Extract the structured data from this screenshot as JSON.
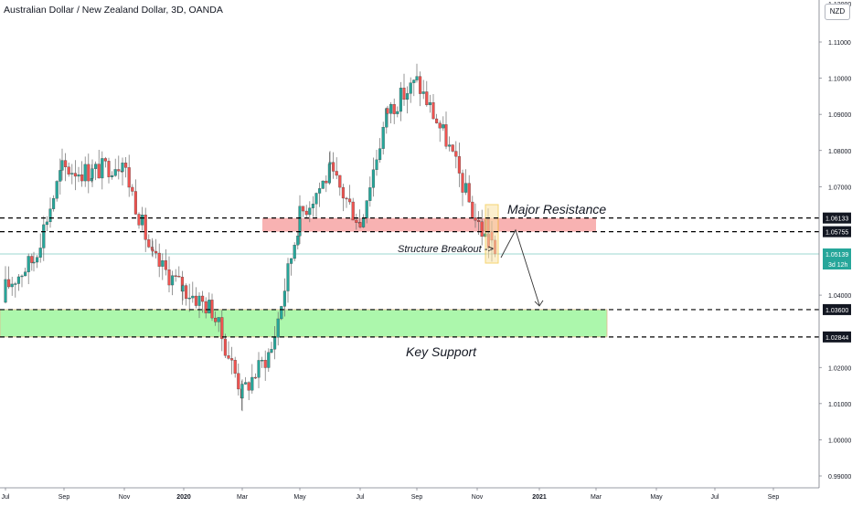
{
  "header": {
    "title": "Australian Dollar / New Zealand Dollar, 3D, OANDA",
    "currency_button": "NZD"
  },
  "price_axis": {
    "ticks": [
      "1.11000",
      "1.10000",
      "1.09000",
      "1.08000",
      "1.07000",
      "1.04000",
      "1.02000",
      "1.01000",
      "1.00000",
      "0.99000"
    ],
    "tick_values": [
      1.11,
      1.1,
      1.09,
      1.08,
      1.07,
      1.04,
      1.02,
      1.01,
      1.0,
      0.99
    ],
    "top_clipped_label": "1.12000",
    "level_labels": [
      {
        "text": "1.06133",
        "value": 1.06133
      },
      {
        "text": "1.05755",
        "value": 1.05755
      },
      {
        "text": "1.03600",
        "value": 1.036
      },
      {
        "text": "1.02844",
        "value": 1.02844
      }
    ],
    "last_price": {
      "text": "1.05139",
      "value": 1.05139,
      "countdown": "3d 12h"
    }
  },
  "time_axis": {
    "labels": [
      "Jul",
      "Sep",
      "Nov",
      "2020",
      "Mar",
      "May",
      "Jul",
      "Sep",
      "Nov",
      "2021",
      "Mar",
      "May",
      "Jul",
      "Sep"
    ],
    "bold": [
      "2020",
      "2021"
    ]
  },
  "annotations": {
    "resistance_label": "Major Resistance",
    "support_label": "Key Support",
    "breakout_label": "Structure Breakout ->"
  },
  "colors": {
    "up": "#26a69a",
    "down": "#ef5350",
    "resistance_zone": "#f7a4a4",
    "support_zone": "#a4f7a4",
    "highlight_box": "#fbe3a6",
    "last_price_badge": "#26a69a",
    "level_label_bg": "#131722",
    "text": "#131722",
    "axis_text": "#787b86"
  },
  "chart_data": {
    "type": "candlestick",
    "symbol": "AUDNZD",
    "timeframe": "3D",
    "source": "OANDA",
    "ylim": [
      0.99,
      1.12
    ],
    "x_range": [
      "2019-06",
      "2021-10"
    ],
    "horizontal_levels": [
      1.06133,
      1.05755,
      1.036,
      1.02844
    ],
    "resistance_zone": [
      1.05755,
      1.06133
    ],
    "support_zone": [
      1.02844,
      1.036
    ],
    "last_price": 1.05139,
    "projection": [
      1.05139,
      1.0575,
      1.036
    ],
    "close_path": [
      {
        "month": "Jul 2019",
        "close": 1.042
      },
      {
        "month": "Aug 2019",
        "close": 1.05
      },
      {
        "month": "Sep 2019",
        "close": 1.075
      },
      {
        "month": "Oct 2019",
        "close": 1.074
      },
      {
        "month": "Nov 2019",
        "close": 1.077
      },
      {
        "month": "Dec 2019",
        "close": 1.05
      },
      {
        "month": "Jan 2020",
        "close": 1.042
      },
      {
        "month": "Feb 2020",
        "close": 1.036
      },
      {
        "month": "Mar 2020",
        "close": 1.013
      },
      {
        "month": "Apr 2020",
        "close": 1.025
      },
      {
        "month": "May 2020",
        "close": 1.062
      },
      {
        "month": "Jun 2020",
        "close": 1.074
      },
      {
        "month": "Jul 2020",
        "close": 1.06
      },
      {
        "month": "Aug 2020",
        "close": 1.091
      },
      {
        "month": "Sep 2020",
        "close": 1.099
      },
      {
        "month": "Oct 2020",
        "close": 1.083
      },
      {
        "month": "Nov 2020",
        "close": 1.061
      },
      {
        "month": "Nov 2020 (latest)",
        "close": 1.05139
      }
    ]
  }
}
